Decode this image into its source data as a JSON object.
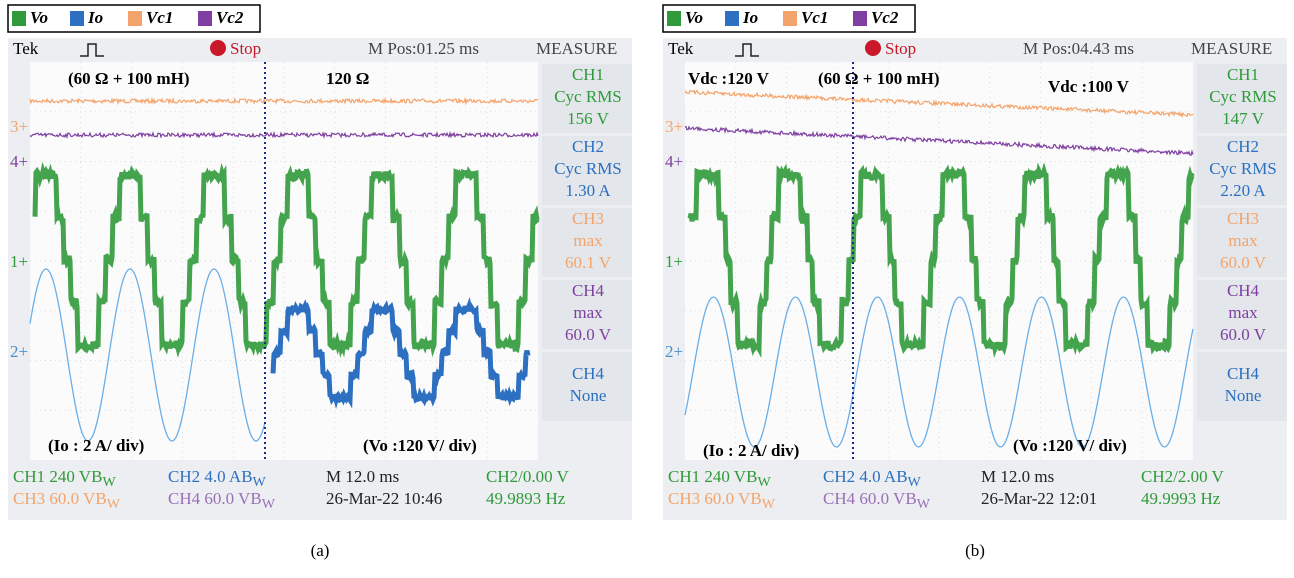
{
  "panels": [
    {
      "legend": [
        {
          "name": "Vo",
          "color": "#2f9a3a"
        },
        {
          "name": "Io",
          "color": "#2d6fc0"
        },
        {
          "name": "Vc1",
          "color": "#f4a46a"
        },
        {
          "name": "Vc2",
          "color": "#7e3fa0"
        }
      ],
      "header": {
        "brand": "Tek",
        "state": "Stop",
        "position": "M Pos:01.25 ms",
        "menu": "MEASURE"
      },
      "annotations": [
        "(60 Ω + 100 mH)",
        "120 Ω",
        "(Io : 2 A/ div)",
        "(Vo :120 V/ div)"
      ],
      "channel_markers": [
        {
          "label": "3+",
          "color": "#f4a46a"
        },
        {
          "label": "4+",
          "color": "#7e3fa0"
        },
        {
          "label": "1+",
          "color": "#2f9a3a"
        },
        {
          "label": "2+",
          "color": "#4a90d0"
        }
      ],
      "measurements": [
        {
          "color": "#2f9a3a",
          "lines": [
            "CH1",
            "Cyc RMS",
            "156 V"
          ]
        },
        {
          "color": "#2d6fc0",
          "lines": [
            "CH2",
            "Cyc RMS",
            "1.30 A"
          ]
        },
        {
          "color": "#f4a46a",
          "lines": [
            "CH3",
            "max",
            "60.1 V"
          ]
        },
        {
          "color": "#7e3fa0",
          "lines": [
            "CH4",
            "max",
            "60.0 V"
          ]
        },
        {
          "color": "#2d6fc0",
          "lines": [
            "CH4",
            "None"
          ]
        }
      ],
      "footer": [
        [
          {
            "text": "CH1 240 VB",
            "sub": "W",
            "color": "#2f9a3a"
          },
          {
            "text": "CH2 4.0 AB",
            "sub": "W",
            "color": "#2d6fc0"
          },
          {
            "text": "M 12.0 ms",
            "color": "#222222"
          },
          {
            "text": "CH2/0.00 V",
            "color": "#2f9a3a"
          }
        ],
        [
          {
            "text": "CH3 60.0 VB",
            "sub": "W",
            "color": "#f4a46a"
          },
          {
            "text": "CH4 60.0 VB",
            "sub": "W",
            "color": "#9a70b8"
          },
          {
            "text": "26-Mar-22 10:46",
            "color": "#222222"
          },
          {
            "text": "49.9893 Hz",
            "color": "#2f9a3a"
          }
        ]
      ],
      "caption": "(a)"
    },
    {
      "legend": [
        {
          "name": "Vo",
          "color": "#2f9a3a"
        },
        {
          "name": "Io",
          "color": "#2d6fc0"
        },
        {
          "name": "Vc1",
          "color": "#f4a46a"
        },
        {
          "name": "Vc2",
          "color": "#7e3fa0"
        }
      ],
      "header": {
        "brand": "Tek",
        "state": "Stop",
        "position": "M Pos:04.43 ms",
        "menu": "MEASURE"
      },
      "annotations": [
        "Vdc :120 V",
        "(60 Ω + 100 mH)",
        "Vdc :100 V",
        "(Io : 2 A/ div)",
        "(Vo :120 V/ div)"
      ],
      "channel_markers": [
        {
          "label": "3+",
          "color": "#f4a46a"
        },
        {
          "label": "4+",
          "color": "#7e3fa0"
        },
        {
          "label": "1+",
          "color": "#2f9a3a"
        },
        {
          "label": "2+",
          "color": "#4a90d0"
        }
      ],
      "measurements": [
        {
          "color": "#2f9a3a",
          "lines": [
            "CH1",
            "Cyc RMS",
            "147 V"
          ]
        },
        {
          "color": "#2d6fc0",
          "lines": [
            "CH2",
            "Cyc RMS",
            "2.20 A"
          ]
        },
        {
          "color": "#f4a46a",
          "lines": [
            "CH3",
            "max",
            "60.0 V"
          ]
        },
        {
          "color": "#7e3fa0",
          "lines": [
            "CH4",
            "max",
            "60.0 V"
          ]
        },
        {
          "color": "#2d6fc0",
          "lines": [
            "CH4",
            "None"
          ]
        }
      ],
      "footer": [
        [
          {
            "text": "CH1 240 VB",
            "sub": "W",
            "color": "#2f9a3a"
          },
          {
            "text": "CH2 4.0 AB",
            "sub": "W",
            "color": "#2d6fc0"
          },
          {
            "text": "M 12.0 ms",
            "color": "#222222"
          },
          {
            "text": "CH2/2.00 V",
            "color": "#2f9a3a"
          }
        ],
        [
          {
            "text": "CH3 60.0 VB",
            "sub": "W",
            "color": "#f4a46a"
          },
          {
            "text": "CH4 60.0 VB",
            "sub": "W",
            "color": "#9a70b8"
          },
          {
            "text": "26-Mar-22 12:01",
            "color": "#222222"
          },
          {
            "text": "49.9993 Hz",
            "color": "#2f9a3a"
          }
        ]
      ],
      "caption": "(b)"
    }
  ]
}
